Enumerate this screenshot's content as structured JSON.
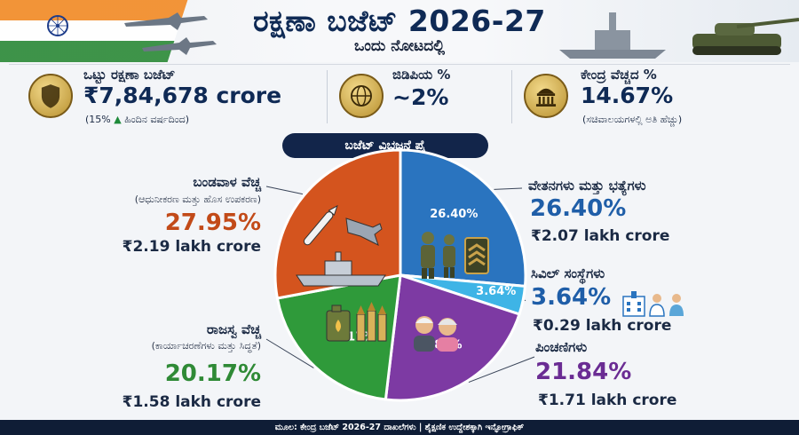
{
  "header": {
    "title": "ರಕ್ಷಣಾ ಬಜೆಟ್ 2026-27",
    "subtitle": "ಒಂದು ನೋಟದಲ್ಲಿ"
  },
  "stats": [
    {
      "label": "ಒಟ್ಟು ರಕ್ಷಣಾ ಬಜೆಟ್",
      "value": "₹7,84,678 crore",
      "note_prefix": "(15%",
      "note_suffix": "ಹಿಂದಿನ ವರ್ಷದಿಂದ)",
      "icon": "shield-icon"
    },
    {
      "label": "ಜಿಡಿಪಿಯ %",
      "value": "~2%",
      "icon": "globe-rupee-icon"
    },
    {
      "label": "ಕೇಂದ್ರ ವೆಚ್ಚದ %",
      "value": "14.67%",
      "note": "(ಸಚಿವಾಲಯಗಳಲ್ಲಿ ಅತಿ ಹೆಚ್ಚು)",
      "icon": "parliament-icon"
    }
  ],
  "breakdown_title": "ಬಜೆಟ್ ವಿಭಜನೆ ಪೈ",
  "chart_data": {
    "type": "pie",
    "slices": [
      {
        "name": "ವೇತನಗಳು ಮತ್ತು ಭತ್ಯೆಗಳು",
        "subtitle": "",
        "value": 26.4,
        "inner_label": "26.40%",
        "pct_label": "26.40%",
        "amount": "₹2.07 lakh crore",
        "color": "#2a74bf"
      },
      {
        "name": "ಸಿವಿಲ್ ಸಂಸ್ಥೆಗಳು",
        "subtitle": "",
        "value": 3.64,
        "inner_label": "3.64%",
        "pct_label": "3.64%",
        "amount": "₹0.29 lakh crore",
        "color": "#3eb4e6"
      },
      {
        "name": "ಪಿಂಚಣಿಗಳು",
        "subtitle": "",
        "value": 21.84,
        "inner_label": "21.84%",
        "pct_label": "21.84%",
        "amount": "₹1.71 lakh crore",
        "color": "#7d3aa3"
      },
      {
        "name": "ರಾಜಸ್ವ ವೆಚ್ಚ",
        "subtitle": "(ಕಾರ್ಯಾಚರಣೆಗಳು ಮತ್ತು ಸಿದ್ಧತೆ)",
        "value": 20.17,
        "inner_label": "20.17%",
        "pct_label": "20.17%",
        "amount": "₹1.58 lakh crore",
        "color": "#2f9a3a"
      },
      {
        "name": "ಬಂಡವಾಳ ವೆಚ್ಚ",
        "subtitle": "(ಆಧುನೀಕರಣ ಮತ್ತು ಹೊಸ ಉಪಕರಣ)",
        "value": 27.95,
        "inner_label": "27.95%",
        "pct_label": "27.95%",
        "amount": "₹2.19 lakh crore",
        "color": "#d4541e"
      }
    ],
    "pct_colors": [
      "#1f5ea8",
      "#1f5ea8",
      "#6a2c93",
      "#2f8a36",
      "#c24a18"
    ]
  },
  "footer": "ಮೂಲ: ಕೇಂದ್ರ ಬಜೆಟ್ 2026-27 ದಾಖಲೆಗಳು | ಶೈಕ್ಷಣಿಕ ಉದ್ದೇಶಕ್ಕಾಗಿ ಇನ್ಫೋಗ್ರಾಫಿಕ್"
}
